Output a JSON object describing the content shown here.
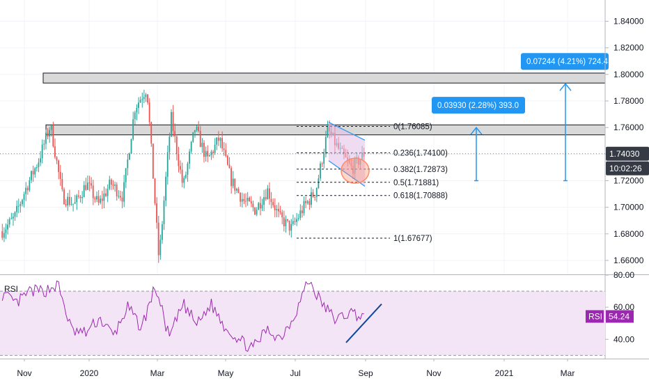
{
  "chart_data": [
    {
      "type": "candlestick",
      "title": "",
      "price_axis_ticks": [
        "1.84000",
        "1.82000",
        "1.80000",
        "1.78000",
        "1.76000",
        "1.74000",
        "1.72000",
        "1.70000",
        "1.68000",
        "1.66000"
      ],
      "ylim": [
        1.6495,
        1.856
      ],
      "x_axis_labels": [
        "Nov",
        "2020",
        "Mar",
        "May",
        "Jul",
        "Sep",
        "Nov",
        "2021",
        "Mar"
      ],
      "last_price": "1.74030",
      "countdown": "10:02:26",
      "colors": {
        "up": "#26a69a",
        "down": "#ef5350",
        "accent": "#2196f3",
        "zone_fill": "#d9d9d9",
        "channel_fill": "#e1bee7",
        "circle": "#ff8a65"
      },
      "ohlc_series_waypoints": {
        "desc": "approximate close path (x axis = month labels above)",
        "points": [
          [
            "Oct",
            1.682
          ],
          [
            "Nov",
            1.692
          ],
          [
            "Nov",
            1.715
          ],
          [
            "Dec",
            1.735
          ],
          [
            "Dec",
            1.762
          ],
          [
            "Dec",
            1.708
          ],
          [
            "2020",
            1.702
          ],
          [
            "Jan",
            1.718
          ],
          [
            "Feb",
            1.702
          ],
          [
            "Feb",
            1.718
          ],
          [
            "Feb",
            1.708
          ],
          [
            "Mar",
            1.775
          ],
          [
            "Mar",
            1.79
          ],
          [
            "Mar",
            1.66
          ],
          [
            "Apr",
            1.768
          ],
          [
            "Apr",
            1.715
          ],
          [
            "Apr",
            1.76
          ],
          [
            "May",
            1.735
          ],
          [
            "May",
            1.752
          ],
          [
            "May",
            1.72
          ],
          [
            "Jun",
            1.705
          ],
          [
            "Jun",
            1.698
          ],
          [
            "Jun",
            1.713
          ],
          [
            "Jul",
            1.692
          ],
          [
            "Jul",
            1.684
          ],
          [
            "Jul",
            1.7
          ],
          [
            "Jul",
            1.712
          ],
          [
            "Aug",
            1.758
          ],
          [
            "Aug",
            1.742
          ],
          [
            "Aug",
            1.729
          ],
          [
            "Sep",
            1.74
          ]
        ]
      },
      "zones": [
        {
          "name": "resistance-zone-upper",
          "low": 1.7935,
          "high": 1.801
        },
        {
          "name": "resistance-zone-lower",
          "low": 1.7545,
          "high": 1.762
        }
      ],
      "fibonacci_labels": [
        {
          "level": "0",
          "price": 1.76085,
          "label": "0(1.76085)"
        },
        {
          "level": "0.236",
          "price": 1.741,
          "label": "0.236(1.74100)"
        },
        {
          "level": "0.382",
          "price": 1.72873,
          "label": "0.382(1.72873)"
        },
        {
          "level": "0.5",
          "price": 1.71881,
          "label": "0.5(1.71881)"
        },
        {
          "level": "0.618",
          "price": 1.70888,
          "label": "0.618(1.70888)"
        },
        {
          "level": "1",
          "price": 1.67677,
          "label": "1(1.67677)"
        }
      ],
      "projections": [
        {
          "label": "0.03930 (2.28%) 393.0",
          "from": 1.72,
          "to": 1.76
        },
        {
          "label": "0.07244 (4.21%) 724.4",
          "from": 1.72,
          "to": 1.793
        }
      ]
    },
    {
      "type": "line",
      "indicator": "RSI",
      "label": "RSI",
      "last_value": "54.24",
      "ticks": [
        "80.00",
        "60.00",
        "40.00"
      ],
      "ylim": [
        28,
        80
      ],
      "band": [
        30,
        70
      ],
      "colors": {
        "line": "#9c27b0",
        "band": "#f3e5f5",
        "trendline": "#0d47a1"
      },
      "waypoints": [
        [
          "Oct",
          68
        ],
        [
          "Nov",
          62
        ],
        [
          "Nov",
          70
        ],
        [
          "Dec",
          70
        ],
        [
          "Dec",
          74
        ],
        [
          "Dec",
          45
        ],
        [
          "2020",
          44
        ],
        [
          "Jan",
          53
        ],
        [
          "Feb",
          42
        ],
        [
          "Feb",
          60
        ],
        [
          "Mar",
          47
        ],
        [
          "Mar",
          73
        ],
        [
          "Mar",
          41
        ],
        [
          "Apr",
          62
        ],
        [
          "Apr",
          49
        ],
        [
          "May",
          62
        ],
        [
          "May",
          48
        ],
        [
          "Jun",
          40
        ],
        [
          "Jun",
          34
        ],
        [
          "Jul",
          46
        ],
        [
          "Jul",
          41
        ],
        [
          "Jul",
          55
        ],
        [
          "Aug",
          77
        ],
        [
          "Aug",
          62
        ],
        [
          "Aug",
          52
        ],
        [
          "Sep",
          57
        ],
        [
          "Sep",
          54
        ]
      ]
    }
  ]
}
